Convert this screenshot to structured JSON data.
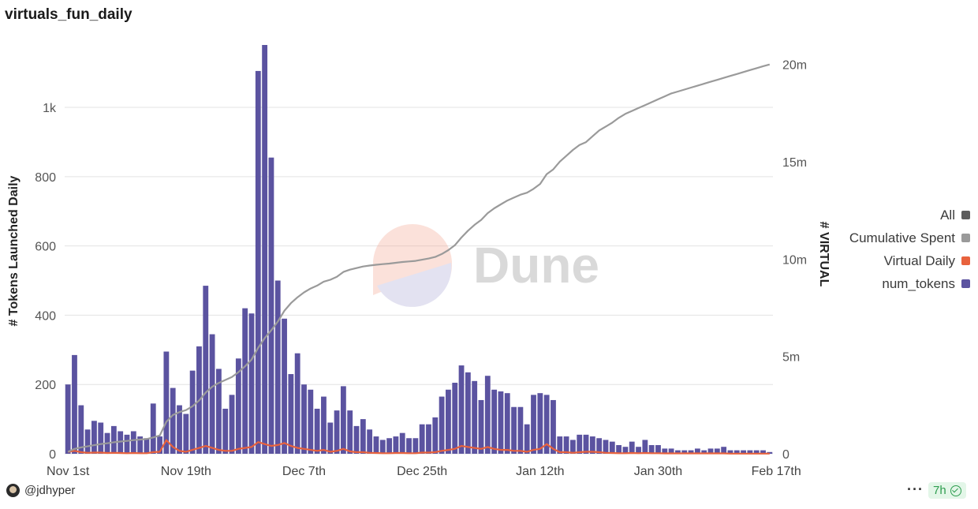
{
  "title": "virtuals_fun_daily",
  "watermark": "Dune",
  "author": "@jdhyper",
  "more_label": "···",
  "age_badge": "7h",
  "legend": [
    {
      "label": "All",
      "color": "#5c5c5c"
    },
    {
      "label": "Cumulative Spent",
      "color": "#9a9a9a"
    },
    {
      "label": "Virtual Daily",
      "color": "#e8623d"
    },
    {
      "label": "num_tokens",
      "color": "#5b53a0"
    }
  ],
  "chart_data": {
    "type": "bar",
    "ylabel": "# Tokens Launched Daily",
    "y2label": "# VIRTUAL",
    "ylim": [
      0,
      1180
    ],
    "y2lim": [
      0,
      21000000
    ],
    "yticks": [
      {
        "v": 0,
        "t": "0"
      },
      {
        "v": 200,
        "t": "200"
      },
      {
        "v": 400,
        "t": "400"
      },
      {
        "v": 600,
        "t": "600"
      },
      {
        "v": 800,
        "t": "800"
      },
      {
        "v": 1000,
        "t": "1k"
      }
    ],
    "y2ticks": [
      {
        "v": 0,
        "t": "0"
      },
      {
        "v": 5000000,
        "t": "5m"
      },
      {
        "v": 10000000,
        "t": "10m"
      },
      {
        "v": 15000000,
        "t": "15m"
      },
      {
        "v": 20000000,
        "t": "20m"
      }
    ],
    "xticks": [
      {
        "i": 0,
        "t": "Nov 1st"
      },
      {
        "i": 18,
        "t": "Nov 19th"
      },
      {
        "i": 36,
        "t": "Dec 7th"
      },
      {
        "i": 54,
        "t": "Dec 25th"
      },
      {
        "i": 72,
        "t": "Jan 12th"
      },
      {
        "i": 90,
        "t": "Jan 30th"
      },
      {
        "i": 108,
        "t": "Feb 17th"
      }
    ],
    "grid": true,
    "legend_position": "right",
    "series": [
      {
        "name": "num_tokens",
        "type": "bar",
        "axis": "left",
        "color": "#5b53a0",
        "values": [
          200,
          285,
          140,
          70,
          95,
          90,
          60,
          80,
          65,
          55,
          65,
          50,
          45,
          145,
          50,
          295,
          190,
          140,
          115,
          240,
          310,
          485,
          345,
          245,
          130,
          170,
          275,
          420,
          405,
          1105,
          1180,
          855,
          500,
          390,
          230,
          290,
          200,
          185,
          130,
          165,
          90,
          125,
          195,
          125,
          80,
          100,
          70,
          50,
          40,
          45,
          50,
          60,
          45,
          45,
          85,
          85,
          105,
          165,
          185,
          205,
          255,
          235,
          210,
          155,
          225,
          185,
          180,
          175,
          135,
          135,
          85,
          170,
          175,
          170,
          155,
          50,
          50,
          40,
          55,
          55,
          50,
          45,
          40,
          35,
          25,
          20,
          35,
          20,
          40,
          25,
          25,
          15,
          15,
          10,
          10,
          10,
          15,
          10,
          15,
          15,
          20,
          10,
          10,
          10,
          10,
          10,
          10,
          5
        ]
      },
      {
        "name": "Virtual Daily",
        "type": "line",
        "axis": "right",
        "color": "#e8623d",
        "values": [
          100000,
          150000,
          80000,
          50000,
          60000,
          60000,
          40000,
          50000,
          40000,
          30000,
          40000,
          30000,
          30000,
          80000,
          100000,
          700000,
          350000,
          150000,
          100000,
          200000,
          300000,
          400000,
          300000,
          200000,
          150000,
          150000,
          250000,
          300000,
          350000,
          600000,
          500000,
          400000,
          450000,
          550000,
          400000,
          300000,
          250000,
          200000,
          150000,
          200000,
          100000,
          150000,
          250000,
          120000,
          80000,
          80000,
          50000,
          40000,
          30000,
          30000,
          40000,
          40000,
          30000,
          30000,
          60000,
          60000,
          80000,
          150000,
          200000,
          250000,
          400000,
          350000,
          300000,
          250000,
          350000,
          250000,
          200000,
          200000,
          150000,
          150000,
          100000,
          200000,
          250000,
          500000,
          250000,
          80000,
          80000,
          50000,
          80000,
          100000,
          100000,
          80000,
          50000,
          40000,
          30000,
          30000,
          40000,
          30000,
          40000,
          30000,
          30000,
          20000,
          20000,
          20000,
          20000,
          20000,
          20000,
          20000,
          20000,
          20000,
          20000,
          10000,
          10000,
          10000,
          10000,
          10000,
          10000,
          10000
        ]
      },
      {
        "name": "Cumulative Spent",
        "type": "line",
        "axis": "right",
        "color": "#9a9a9a",
        "values": [
          100000,
          250000,
          330000,
          380000,
          440000,
          500000,
          540000,
          590000,
          630000,
          660000,
          700000,
          730000,
          760000,
          840000,
          940000,
          1640000,
          1990000,
          2140000,
          2240000,
          2440000,
          2740000,
          3140000,
          3440000,
          3640000,
          3790000,
          3940000,
          4190000,
          4490000,
          4840000,
          5440000,
          5940000,
          6340000,
          6790000,
          7340000,
          7740000,
          8040000,
          8290000,
          8490000,
          8640000,
          8840000,
          8940000,
          9090000,
          9340000,
          9460000,
          9540000,
          9620000,
          9670000,
          9710000,
          9740000,
          9770000,
          9810000,
          9850000,
          9880000,
          9910000,
          9970000,
          10030000,
          10110000,
          10260000,
          10460000,
          10710000,
          11110000,
          11460000,
          11760000,
          12010000,
          12360000,
          12610000,
          12810000,
          13010000,
          13160000,
          13310000,
          13410000,
          13610000,
          13860000,
          14360000,
          14610000,
          15010000,
          15310000,
          15610000,
          15860000,
          16010000,
          16310000,
          16610000,
          16810000,
          17010000,
          17260000,
          17460000,
          17610000,
          17760000,
          17910000,
          18060000,
          18210000,
          18360000,
          18510000,
          18610000,
          18710000,
          18810000,
          18910000,
          19010000,
          19110000,
          19210000,
          19310000,
          19410000,
          19510000,
          19610000,
          19710000,
          19810000,
          19910000,
          20000000
        ]
      }
    ]
  }
}
